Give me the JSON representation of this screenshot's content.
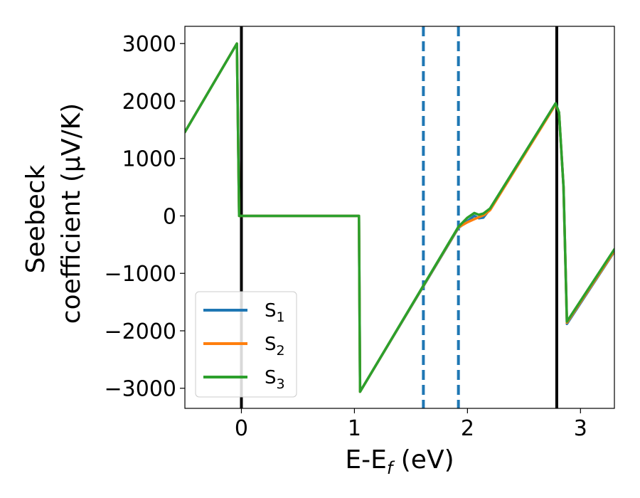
{
  "chart_data": {
    "type": "line",
    "xlabel": "E-E",
    "xlabel_sub": "f",
    "xlabel_unit": " (eV)",
    "ylabel_line1": "Seebeck",
    "ylabel_line2": "coefficient  (μV/K)",
    "xlim": [
      -0.5,
      3.3
    ],
    "ylim": [
      -3350,
      3300
    ],
    "xticks": [
      0,
      1,
      2,
      3
    ],
    "xtick_labels": [
      "0",
      "1",
      "2",
      "3"
    ],
    "yticks": [
      -3000,
      -2000,
      -1000,
      0,
      1000,
      2000,
      3000
    ],
    "ytick_labels": [
      "−3000",
      "−2000",
      "−1000",
      "0",
      "1000",
      "2000",
      "3000"
    ],
    "grid": false,
    "legend_position": "lower-left",
    "legend": [
      {
        "base": "S",
        "sub": "1",
        "color": "#1f77b4"
      },
      {
        "base": "S",
        "sub": "2",
        "color": "#ff7f0e"
      },
      {
        "base": "S",
        "sub": "3",
        "color": "#2ca02c"
      }
    ],
    "vertical_lines": [
      {
        "x": 0.0,
        "style": "solid",
        "color": "#000000"
      },
      {
        "x": 1.61,
        "style": "dashed",
        "color": "#1f77b4"
      },
      {
        "x": 1.92,
        "style": "dashed",
        "color": "#1f77b4"
      },
      {
        "x": 2.79,
        "style": "solid",
        "color": "#000000"
      }
    ],
    "series": [
      {
        "name": "S1",
        "color": "#1f77b4",
        "points": [
          [
            -0.5,
            1460
          ],
          [
            -0.04,
            3000
          ],
          [
            -0.02,
            0
          ],
          [
            1.04,
            0
          ],
          [
            1.05,
            -3060
          ],
          [
            1.92,
            -210
          ],
          [
            2.0,
            -90
          ],
          [
            2.06,
            0
          ],
          [
            2.1,
            -40
          ],
          [
            2.14,
            -30
          ],
          [
            2.2,
            120
          ],
          [
            2.78,
            1960
          ],
          [
            2.81,
            1800
          ],
          [
            2.85,
            500
          ],
          [
            2.88,
            -1880
          ],
          [
            3.3,
            -620
          ]
        ]
      },
      {
        "name": "S2",
        "color": "#ff7f0e",
        "points": [
          [
            -0.5,
            1460
          ],
          [
            -0.04,
            3000
          ],
          [
            -0.02,
            0
          ],
          [
            1.04,
            0
          ],
          [
            1.05,
            -3060
          ],
          [
            1.92,
            -200
          ],
          [
            2.0,
            -110
          ],
          [
            2.08,
            -40
          ],
          [
            2.15,
            20
          ],
          [
            2.2,
            100
          ],
          [
            2.78,
            1940
          ],
          [
            2.81,
            1800
          ],
          [
            2.85,
            500
          ],
          [
            2.88,
            -1860
          ],
          [
            3.3,
            -610
          ]
        ]
      },
      {
        "name": "S3",
        "color": "#2ca02c",
        "points": [
          [
            -0.5,
            1460
          ],
          [
            -0.04,
            3000
          ],
          [
            -0.02,
            0
          ],
          [
            1.04,
            0
          ],
          [
            1.05,
            -3060
          ],
          [
            1.92,
            -190
          ],
          [
            2.0,
            -30
          ],
          [
            2.06,
            50
          ],
          [
            2.1,
            20
          ],
          [
            2.14,
            40
          ],
          [
            2.2,
            130
          ],
          [
            2.78,
            1960
          ],
          [
            2.81,
            1800
          ],
          [
            2.85,
            500
          ],
          [
            2.88,
            -1840
          ],
          [
            3.3,
            -580
          ]
        ]
      }
    ]
  }
}
